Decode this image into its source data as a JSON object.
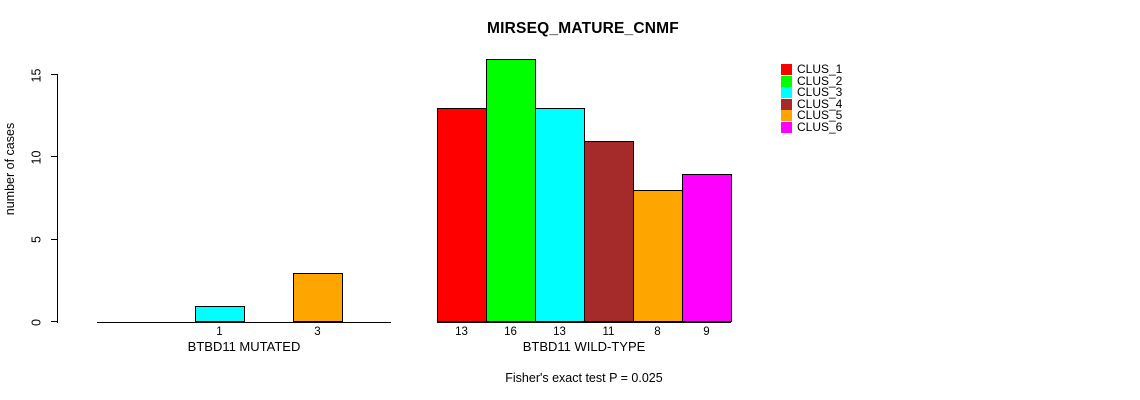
{
  "chart_data": {
    "type": "bar",
    "title": "MIRSEQ_MATURE_CNMF",
    "ylabel": "number of cases",
    "annotation": "Fisher's exact test P = 0.025",
    "categories": [
      "BTBD11 MUTATED",
      "BTBD11 WILD-TYPE"
    ],
    "series": [
      {
        "name": "CLUS_1",
        "color": "#FF0000",
        "values": [
          0,
          13
        ]
      },
      {
        "name": "CLUS_2",
        "color": "#00FF00",
        "values": [
          0,
          16
        ]
      },
      {
        "name": "CLUS_3",
        "color": "#00FFFF",
        "values": [
          1,
          13
        ]
      },
      {
        "name": "CLUS_4",
        "color": "#A52A2A",
        "values": [
          0,
          11
        ]
      },
      {
        "name": "CLUS_5",
        "color": "#FFA500",
        "values": [
          3,
          8
        ]
      },
      {
        "name": "CLUS_6",
        "color": "#FF00FF",
        "values": [
          0,
          9
        ]
      }
    ],
    "yticks": [
      0,
      5,
      10,
      15
    ],
    "ylim": [
      0,
      16.5
    ],
    "grid": false,
    "legend_position": "top-right",
    "bar_labels_shown_for_nonzero_only": true,
    "axis_color": "#000000",
    "background_color": "#FFFFFF"
  }
}
